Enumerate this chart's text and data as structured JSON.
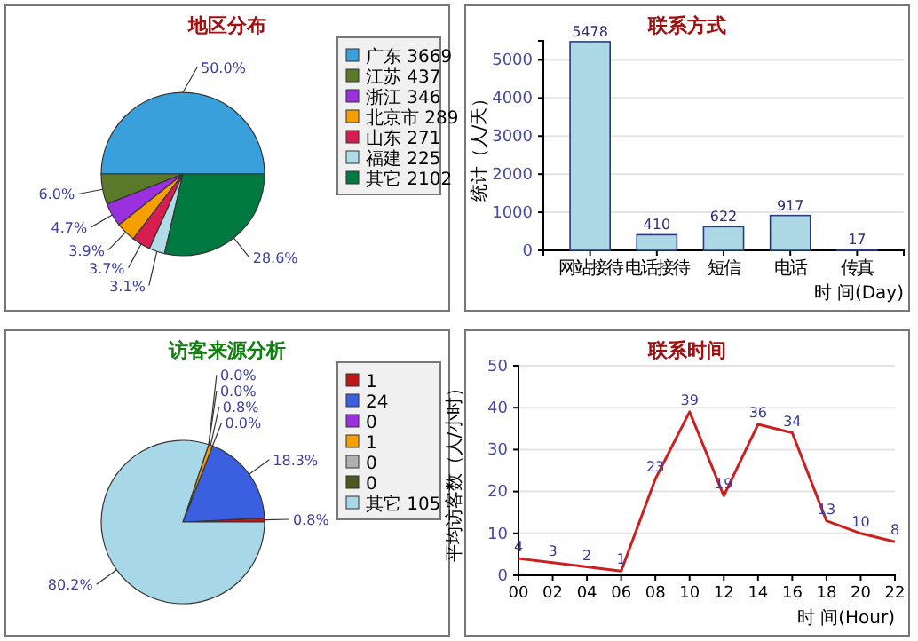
{
  "chart_data": [
    {
      "type": "pie",
      "title": "地区分布",
      "categories": [
        "广东 3669",
        "江苏 437",
        "浙江 346",
        "北京市 289",
        "山东 271",
        "福建 225",
        "其它 2102"
      ],
      "values": [
        50.0,
        6.0,
        4.7,
        3.9,
        3.7,
        3.1,
        28.6
      ],
      "value_labels": [
        "50.0%",
        "6.0%",
        "4.7%",
        "3.9%",
        "3.7%",
        "3.1%",
        "28.6%"
      ],
      "colors": [
        "#3aa0dc",
        "#5a7a2a",
        "#9b30e0",
        "#f5a000",
        "#d81e50",
        "#b0dce8",
        "#007a40"
      ],
      "legend": "top right"
    },
    {
      "type": "bar",
      "title": "联系方式",
      "ylabel": "统计（人/天）",
      "xlabel": "时 间(Day)",
      "categories": [
        "网站接待",
        "电话接待",
        "短信",
        "电话",
        "传真"
      ],
      "values": [
        5478,
        410,
        622,
        917,
        17
      ],
      "color": "#add8e6",
      "ylim": [
        0,
        5500
      ],
      "yticks": [
        0,
        1000,
        2000,
        3000,
        4000,
        5000
      ],
      "grid": "y",
      "data_labels": true
    },
    {
      "type": "pie",
      "title": "访客来源分析",
      "categories": [
        "1",
        "24",
        "0",
        "1",
        "0",
        "0",
        "其它 105"
      ],
      "values": [
        0.8,
        18.3,
        0.0,
        0.8,
        0.0,
        0.0,
        80.2
      ],
      "value_labels": [
        "0.8%",
        "18.3%",
        "0.0%",
        "0.8%",
        "0.0%",
        "0.0%",
        "80.2%"
      ],
      "colors": [
        "#c01818",
        "#3a60e0",
        "#9b30e0",
        "#f5a000",
        "#b0b0b0",
        "#4a5a20",
        "#a8d8e8"
      ],
      "legend": "top right"
    },
    {
      "type": "line",
      "title": "联系时间",
      "ylabel": "平均访客数（人/小时）",
      "xlabel": "时 间(Hour)",
      "x": [
        0,
        2,
        4,
        6,
        8,
        10,
        12,
        14,
        16,
        18,
        20,
        22
      ],
      "values": [
        4,
        3,
        2,
        1,
        23,
        39,
        19,
        36,
        34,
        13,
        10,
        8
      ],
      "color": "#cc2020",
      "xlim": [
        0,
        22
      ],
      "xticks": [
        {
          "value": 0,
          "label": "00"
        },
        {
          "value": 2,
          "label": "02"
        },
        {
          "value": 4,
          "label": "04"
        },
        {
          "value": 6,
          "label": "06"
        },
        {
          "value": 8,
          "label": "08"
        },
        {
          "value": 10,
          "label": "10"
        },
        {
          "value": 12,
          "label": "12"
        },
        {
          "value": 14,
          "label": "14"
        },
        {
          "value": 16,
          "label": "16"
        },
        {
          "value": 18,
          "label": "18"
        },
        {
          "value": 20,
          "label": "20"
        },
        {
          "value": 22,
          "label": "22"
        }
      ],
      "ylim": [
        0,
        50
      ],
      "yticks": [
        0,
        10,
        20,
        30,
        40,
        50
      ],
      "grid": "y",
      "data_labels": true
    }
  ]
}
